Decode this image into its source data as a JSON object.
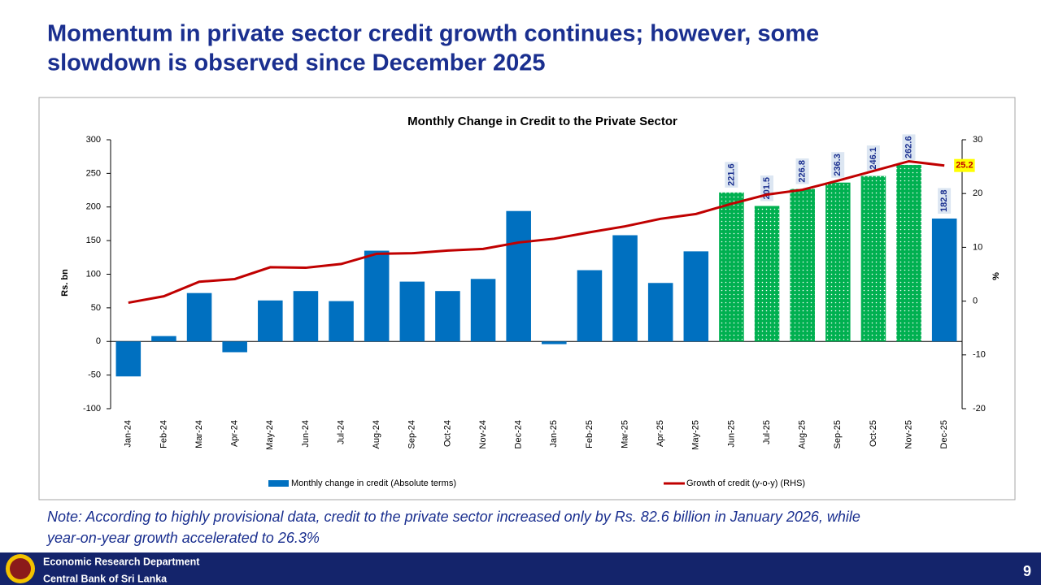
{
  "slide_title": [
    "Momentum in private sector credit growth continues; however, some",
    "slowdown is observed since December 2025"
  ],
  "note": [
    "Note: According to highly provisional data, credit to the private sector increased  only by Rs. 82.6 billion in January 2026, while",
    "year-on-year growth accelerated to 26.3%"
  ],
  "footer": {
    "lines": [
      "Economic Research Department",
      "Central Bank of Sri Lanka"
    ],
    "page": "9"
  },
  "chart_data": {
    "type": "bar_line",
    "title": "Monthly Change in Credit to the Private Sector",
    "y_label": "Rs. bn",
    "y2_label": "%",
    "categories": [
      "Jan-24",
      "Feb-24",
      "Mar-24",
      "Apr-24",
      "May-24",
      "Jun-24",
      "Jul-24",
      "Aug-24",
      "Sep-24",
      "Oct-24",
      "Nov-24",
      "Dec-24",
      "Jan-25",
      "Feb-25",
      "Mar-25",
      "Apr-25",
      "May-25",
      "Jun-25",
      "Jul-25",
      "Aug-25",
      "Sep-25",
      "Oct-25",
      "Nov-25",
      "Dec-25"
    ],
    "series": [
      {
        "name": "Monthly change in credit (Absolute terms)",
        "type": "bar",
        "color": "#0070c0",
        "values": [
          -52,
          8,
          72,
          -16,
          61,
          75,
          60,
          135,
          89,
          75,
          93,
          194,
          -4,
          106,
          158,
          87,
          134,
          221.6,
          201.5,
          226.8,
          236.3,
          246.1,
          262.6,
          182.8
        ],
        "point_colors": [
          "#0070c0",
          "#0070c0",
          "#0070c0",
          "#0070c0",
          "#0070c0",
          "#0070c0",
          "#0070c0",
          "#0070c0",
          "#0070c0",
          "#0070c0",
          "#0070c0",
          "#0070c0",
          "#0070c0",
          "#0070c0",
          "#0070c0",
          "#0070c0",
          "#0070c0",
          "#00b050",
          "#00b050",
          "#00b050",
          "#00b050",
          "#00b050",
          "#00b050",
          "#0070c0"
        ],
        "patterns": [
          "solid",
          "solid",
          "solid",
          "solid",
          "solid",
          "solid",
          "solid",
          "solid",
          "solid",
          "solid",
          "solid",
          "solid",
          "solid",
          "solid",
          "solid",
          "solid",
          "solid",
          "dotted",
          "dotted",
          "dotted",
          "dotted",
          "dotted",
          "dotted",
          "solid"
        ],
        "value_labels": [
          null,
          null,
          null,
          null,
          null,
          null,
          null,
          null,
          null,
          null,
          null,
          null,
          null,
          null,
          null,
          null,
          null,
          "221.6",
          "201.5",
          "226.8",
          "236.3",
          "246.1",
          "262.6",
          "182.8"
        ]
      },
      {
        "name": "Growth of credit (y-o-y) (RHS)",
        "type": "line",
        "axis": "y2",
        "color": "#c00000",
        "values": [
          -0.3,
          0.9,
          3.6,
          4.1,
          6.3,
          6.2,
          6.9,
          8.8,
          8.9,
          9.4,
          9.7,
          10.9,
          11.6,
          12.8,
          13.9,
          15.3,
          16.2,
          18.1,
          19.8,
          20.7,
          22.4,
          24.2,
          26.0,
          25.2
        ],
        "value_labels": [
          null,
          null,
          null,
          null,
          null,
          null,
          null,
          null,
          null,
          null,
          null,
          null,
          null,
          null,
          null,
          null,
          null,
          null,
          null,
          null,
          null,
          null,
          null,
          "25.2"
        ]
      }
    ],
    "ylim": [
      -100,
      300
    ],
    "yticks": [
      -100,
      -50,
      0,
      50,
      100,
      150,
      200,
      250,
      300
    ],
    "y2lim": [
      -20,
      30
    ],
    "y2ticks": [
      -20,
      -10,
      0,
      10,
      20,
      30
    ],
    "grid": false,
    "legend": "bottom"
  }
}
